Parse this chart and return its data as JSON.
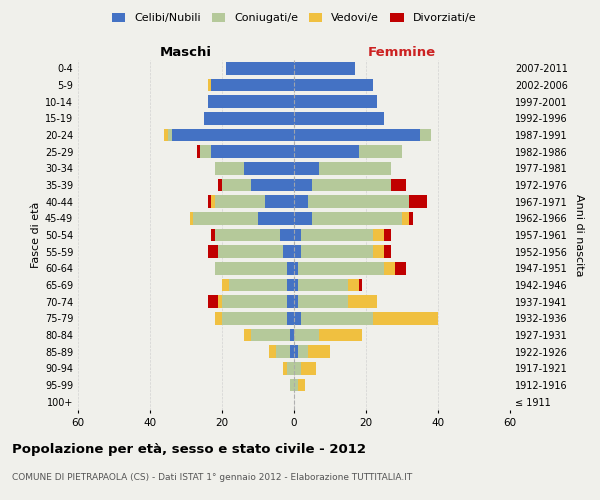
{
  "age_groups": [
    "100+",
    "95-99",
    "90-94",
    "85-89",
    "80-84",
    "75-79",
    "70-74",
    "65-69",
    "60-64",
    "55-59",
    "50-54",
    "45-49",
    "40-44",
    "35-39",
    "30-34",
    "25-29",
    "20-24",
    "15-19",
    "10-14",
    "5-9",
    "0-4"
  ],
  "birth_years": [
    "≤ 1911",
    "1912-1916",
    "1917-1921",
    "1922-1926",
    "1927-1931",
    "1932-1936",
    "1937-1941",
    "1942-1946",
    "1947-1951",
    "1952-1956",
    "1957-1961",
    "1962-1966",
    "1967-1971",
    "1972-1976",
    "1977-1981",
    "1982-1986",
    "1987-1991",
    "1992-1996",
    "1997-2001",
    "2002-2006",
    "2007-2011"
  ],
  "males": {
    "celibe": [
      0,
      0,
      0,
      1,
      1,
      2,
      2,
      2,
      2,
      3,
      4,
      10,
      8,
      12,
      14,
      23,
      34,
      25,
      24,
      23,
      19
    ],
    "coniugato": [
      0,
      1,
      2,
      4,
      11,
      18,
      18,
      16,
      20,
      18,
      18,
      18,
      14,
      8,
      8,
      3,
      1,
      0,
      0,
      0,
      0
    ],
    "vedovo": [
      0,
      0,
      1,
      2,
      2,
      2,
      1,
      2,
      0,
      0,
      0,
      1,
      1,
      0,
      0,
      0,
      1,
      0,
      0,
      1,
      0
    ],
    "divorziato": [
      0,
      0,
      0,
      0,
      0,
      0,
      3,
      0,
      0,
      3,
      1,
      0,
      1,
      1,
      0,
      1,
      0,
      0,
      0,
      0,
      0
    ]
  },
  "females": {
    "nubile": [
      0,
      0,
      0,
      1,
      0,
      2,
      1,
      1,
      1,
      2,
      2,
      5,
      4,
      5,
      7,
      18,
      35,
      25,
      23,
      22,
      17
    ],
    "coniugata": [
      0,
      1,
      2,
      3,
      7,
      20,
      14,
      14,
      24,
      20,
      20,
      25,
      28,
      22,
      20,
      12,
      3,
      0,
      0,
      0,
      0
    ],
    "vedova": [
      0,
      2,
      4,
      6,
      12,
      18,
      8,
      3,
      3,
      3,
      3,
      2,
      0,
      0,
      0,
      0,
      0,
      0,
      0,
      0,
      0
    ],
    "divorziata": [
      0,
      0,
      0,
      0,
      0,
      0,
      0,
      1,
      3,
      2,
      2,
      1,
      5,
      4,
      0,
      0,
      0,
      0,
      0,
      0,
      0
    ]
  },
  "colors": {
    "celibe_nubile": "#4472c4",
    "coniugato_coniugata": "#b5c99a",
    "vedovo_vedova": "#f0c040",
    "divorziato_divorziata": "#c00000"
  },
  "xlim": 60,
  "title": "Popolazione per età, sesso e stato civile - 2012",
  "subtitle": "COMUNE DI PIETRAPAOLA (CS) - Dati ISTAT 1° gennaio 2012 - Elaborazione TUTTITALIA.IT",
  "xlabel_left": "Maschi",
  "xlabel_right": "Femmine",
  "ylabel_left": "Fasce di età",
  "ylabel_right": "Anni di nascita",
  "legend_labels": [
    "Celibi/Nubili",
    "Coniugati/e",
    "Vedovi/e",
    "Divorziati/e"
  ],
  "bg_color": "#f0f0eb",
  "grid_color": "#cccccc",
  "bar_height": 0.75
}
